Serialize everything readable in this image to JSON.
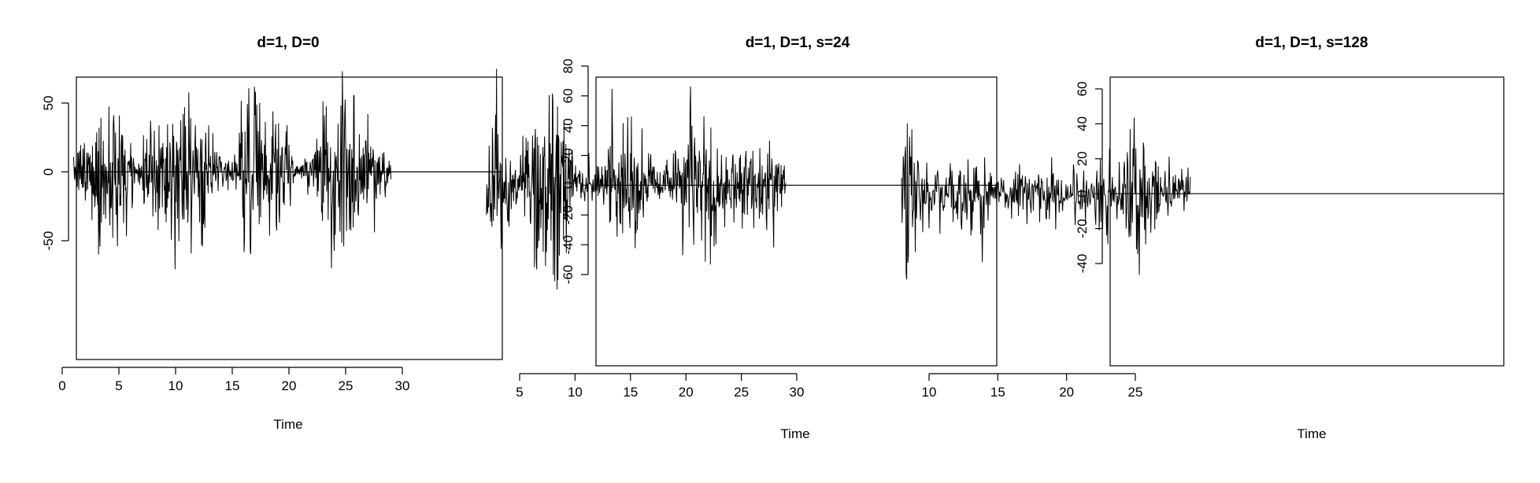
{
  "chart_data": [
    {
      "type": "line",
      "title": "d=1, D=0",
      "xlabel": "Time",
      "ylabel": "",
      "xlim": [
        1,
        29
      ],
      "ylim": [
        -80,
        76
      ],
      "xticks": [
        0,
        5,
        10,
        15,
        20,
        25,
        30
      ],
      "yticks": [
        -50,
        0,
        50
      ],
      "hline": 0,
      "box": true,
      "series": [
        {
          "name": "",
          "x_start": 1,
          "x_end": 29,
          "amplitude": 75,
          "envelope": [
            [
              1,
              0.15
            ],
            [
              2,
              0.6
            ],
            [
              4,
              1.0
            ],
            [
              5.5,
              0.8
            ],
            [
              6.5,
              0.15
            ],
            [
              8,
              0.8
            ],
            [
              10,
              0.95
            ],
            [
              12,
              0.9
            ],
            [
              13.5,
              0.3
            ],
            [
              15,
              0.15
            ],
            [
              16,
              0.9
            ],
            [
              18.5,
              0.95
            ],
            [
              20,
              0.5
            ],
            [
              21,
              0.1
            ],
            [
              22,
              0.4
            ],
            [
              23,
              0.95
            ],
            [
              26,
              1.0
            ],
            [
              27.5,
              0.6
            ],
            [
              29,
              0.2
            ]
          ]
        }
      ]
    },
    {
      "type": "line",
      "title": "d=1, D=1, s=24",
      "xlabel": "Time",
      "ylabel": "",
      "xlim": [
        2,
        29
      ],
      "ylim": [
        -70,
        82
      ],
      "xticks": [
        5,
        10,
        15,
        20,
        25,
        30
      ],
      "yticks": [
        -60,
        -40,
        -20,
        0,
        20,
        40,
        60,
        80
      ],
      "hline": 0,
      "box": true,
      "series": [
        {
          "name": "",
          "x_start": 2,
          "x_end": 29,
          "amplitude": 76,
          "envelope": [
            [
              2,
              0.5
            ],
            [
              2.5,
              1.0
            ],
            [
              3.5,
              0.6
            ],
            [
              5,
              0.3
            ],
            [
              6.5,
              0.9
            ],
            [
              8.5,
              1.0
            ],
            [
              10,
              0.2
            ],
            [
              12,
              0.2
            ],
            [
              13.5,
              0.85
            ],
            [
              15.5,
              0.7
            ],
            [
              17,
              0.25
            ],
            [
              19,
              0.3
            ],
            [
              20.5,
              0.9
            ],
            [
              22.5,
              0.75
            ],
            [
              24,
              0.3
            ],
            [
              25.5,
              0.5
            ],
            [
              27.5,
              0.7
            ],
            [
              29,
              0.2
            ]
          ]
        }
      ]
    },
    {
      "type": "line",
      "title": "d=1, D=1, s=128",
      "xlabel": "Time",
      "ylabel": "",
      "xlim": [
        8,
        29
      ],
      "ylim": [
        -52,
        70
      ],
      "xticks": [
        10,
        15,
        20,
        25
      ],
      "yticks": [
        -40,
        -20,
        0,
        20,
        40,
        60
      ],
      "hline": 0,
      "box": true,
      "series": [
        {
          "name": "",
          "x_start": 8,
          "x_end": 29,
          "amplitude": 68,
          "envelope": [
            [
              8,
              0.4
            ],
            [
              8.5,
              1.0
            ],
            [
              9.5,
              0.35
            ],
            [
              11,
              0.35
            ],
            [
              13,
              0.4
            ],
            [
              14,
              0.55
            ],
            [
              15,
              0.2
            ],
            [
              17,
              0.35
            ],
            [
              18,
              0.4
            ],
            [
              20,
              0.25
            ],
            [
              22,
              0.3
            ],
            [
              24,
              0.5
            ],
            [
              25,
              0.9
            ],
            [
              26,
              0.6
            ],
            [
              27,
              0.35
            ],
            [
              29,
              0.25
            ]
          ]
        }
      ]
    }
  ]
}
